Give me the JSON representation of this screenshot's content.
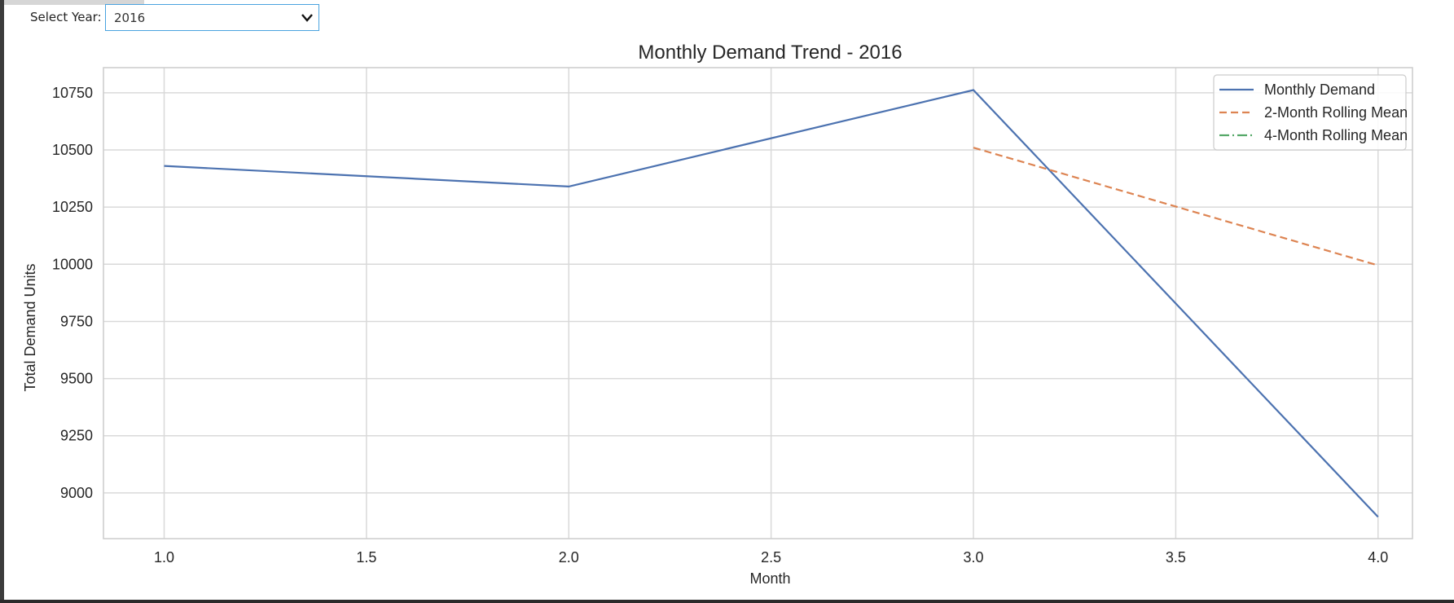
{
  "controls": {
    "year_label": "Select Year:",
    "year_value": "2016"
  },
  "chart_data": {
    "type": "line",
    "title": "Monthly Demand Trend - 2016",
    "xlabel": "Month",
    "ylabel": "Total Demand Units",
    "xlim": [
      0.85,
      4.085
    ],
    "ylim": [
      8800,
      10860
    ],
    "x_ticks": [
      1.0,
      1.5,
      2.0,
      2.5,
      3.0,
      3.5,
      4.0
    ],
    "x_tick_labels": [
      "1.0",
      "1.5",
      "2.0",
      "2.5",
      "3.0",
      "3.5",
      "4.0"
    ],
    "y_ticks": [
      9000,
      9250,
      9500,
      9750,
      10000,
      10250,
      10500,
      10750
    ],
    "y_tick_labels": [
      "9000",
      "9250",
      "9500",
      "9750",
      "10000",
      "10250",
      "10500",
      "10750"
    ],
    "grid": true,
    "legend_position": "top-right",
    "series": [
      {
        "name": "Monthly Demand",
        "color": "#4c72b0",
        "dash": "solid",
        "x": [
          1,
          2,
          3,
          4
        ],
        "y": [
          10430,
          10340,
          10762,
          8895
        ]
      },
      {
        "name": "2-Month Rolling Mean",
        "color": "#dd8452",
        "dash": "dashed",
        "x": [
          3,
          4
        ],
        "y": [
          10510,
          9995
        ]
      },
      {
        "name": "4-Month Rolling Mean",
        "color": "#55a868",
        "dash": "dashdot",
        "x": [],
        "y": []
      }
    ]
  }
}
